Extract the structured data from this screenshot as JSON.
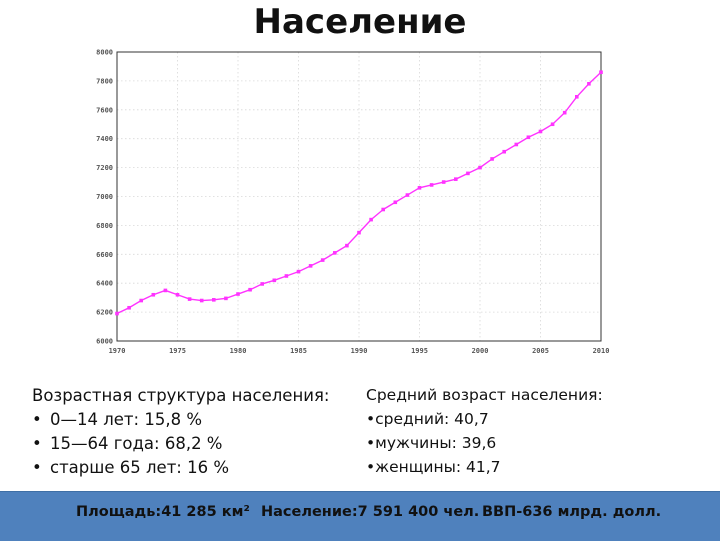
{
  "title": "Население",
  "chart_data": {
    "type": "line",
    "title": "",
    "xlabel": "",
    "ylabel": "",
    "xlim": [
      1970,
      2010
    ],
    "ylim": [
      6000,
      8000
    ],
    "x_ticks": [
      "1970",
      "1975",
      "1980",
      "1985",
      "1990",
      "1995",
      "2000",
      "2005",
      "2010"
    ],
    "y_ticks": [
      "6000",
      "6200",
      "6400",
      "6600",
      "6800",
      "7000",
      "7200",
      "7400",
      "7600",
      "7800",
      "8000"
    ],
    "grid": true,
    "color": "#ff33ff",
    "series": [
      {
        "x": [
          1970,
          1971,
          1972,
          1973,
          1974,
          1975,
          1976,
          1977,
          1978,
          1979,
          1980,
          1981,
          1982,
          1983,
          1984,
          1985,
          1986,
          1987,
          1988,
          1989,
          1990,
          1991,
          1992,
          1993,
          1994,
          1995,
          1996,
          1997,
          1998,
          1999,
          2000,
          2001,
          2002,
          2003,
          2004,
          2005,
          2006,
          2007,
          2008,
          2009,
          2010
        ],
        "y": [
          6190,
          6230,
          6280,
          6320,
          6350,
          6320,
          6290,
          6280,
          6285,
          6295,
          6325,
          6355,
          6395,
          6420,
          6450,
          6480,
          6520,
          6560,
          6610,
          6660,
          6750,
          6840,
          6910,
          6960,
          7010,
          7060,
          7080,
          7100,
          7120,
          7160,
          7200,
          7260,
          7310,
          7360,
          7410,
          7450,
          7500,
          7580,
          7690,
          7780,
          7860
        ]
      }
    ]
  },
  "age_structure": {
    "heading": "Возрастная структура населения:",
    "items": [
      {
        "bullet": "•",
        "text": "0—14 лет: 15,8 %"
      },
      {
        "bullet": "•",
        "text": "15—64 года: 68,2 %"
      },
      {
        "bullet": "•",
        "text": "старше 65 лет: 16 %"
      }
    ]
  },
  "median_age": {
    "heading": "Средний возраст населения:",
    "items": [
      "•средний: 40,7",
      "•мужчины: 39,6",
      "•женщины: 41,7"
    ]
  },
  "footer": {
    "area": "Площадь:41 285 км²",
    "population": "Население:7 591 400 чел.",
    "gdp": "ВВП-636 млрд. долл."
  }
}
